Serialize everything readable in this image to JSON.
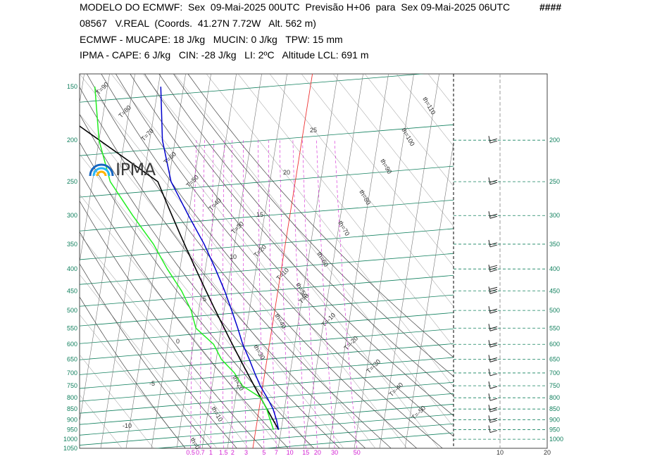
{
  "header": {
    "line1": "MODELO DO ECMWF:  Sex  09-Mai-2025 00UTC  Previsão H+06  para  Sex 09-Mai-2025 06UTC",
    "marker": "####",
    "line2": "08567   V.REAL  (Coords.  41.27N 7.72W   Alt. 562 m)",
    "line3": "ECMWF - MUCAPE: 18 J/kg   MUCIN: 0 J/kg   TPW: 15 mm",
    "line4": "IPMA - CAPE: 6 J/kg   CIN: -28 J/kg   LI: 2ºC   Altitude LCL: 691 m"
  },
  "logo": {
    "text": "IPMA",
    "colors": [
      "#1565c0",
      "#29b6f6",
      "#ffb300"
    ]
  },
  "chart_data": {
    "type": "skew-t log-p",
    "pressure_axis_left": [
      "150",
      "200",
      "250",
      "300",
      "350",
      "400",
      "450",
      "500",
      "550",
      "600",
      "650",
      "700",
      "750",
      "800",
      "850",
      "900",
      "950",
      "1000",
      "1050"
    ],
    "pressure_axis_right": [
      "200",
      "250",
      "300",
      "350",
      "400",
      "450",
      "500",
      "550",
      "600",
      "650",
      "700",
      "750",
      "800",
      "850",
      "900",
      "950",
      "1000"
    ],
    "pressure_levels_left": [
      150,
      200,
      250,
      300,
      350,
      400,
      450,
      500,
      550,
      600,
      650,
      700,
      750,
      800,
      850,
      900,
      950,
      1000,
      1050
    ],
    "pressure_levels_right": [
      200,
      250,
      300,
      350,
      400,
      450,
      500,
      550,
      600,
      650,
      700,
      750,
      800,
      850,
      900,
      950,
      1000
    ],
    "mixing_ratio_ticks": [
      "0.5",
      "0.7",
      "1",
      "1.5",
      "2",
      "3",
      "5",
      "7",
      "10",
      "15",
      "20",
      "30",
      "50"
    ],
    "wind_axis_ticks": [
      "10",
      "20"
    ],
    "isotherm_labels": [
      "T=90",
      "T=80",
      "T=70",
      "T=60",
      "T=50",
      "T=40",
      "T=30",
      "T=20",
      "T=10",
      "T=0",
      "T=-10",
      "T=-20",
      "T=-30",
      "T=-40",
      "T=-50"
    ],
    "theta_labels": [
      "th=110",
      "th=100",
      "th=90",
      "th=80",
      "th=70",
      "th=60",
      "th=50",
      "th=40",
      "th=30",
      "th=20",
      "th=10",
      "th=0",
      "th=-10",
      "th=-20"
    ],
    "moist_adiabat_labels": [
      "25",
      "20",
      "15",
      "10",
      "5",
      "0",
      "-5",
      "-10"
    ],
    "temperature_profile": [
      {
        "p": 950,
        "t": 9.0
      },
      {
        "p": 900,
        "t": 7.5
      },
      {
        "p": 850,
        "t": 5.5
      },
      {
        "p": 800,
        "t": 2.5
      },
      {
        "p": 750,
        "t": -1.0
      },
      {
        "p": 700,
        "t": -4.0
      },
      {
        "p": 650,
        "t": -7.0
      },
      {
        "p": 600,
        "t": -10.5
      },
      {
        "p": 550,
        "t": -13.5
      },
      {
        "p": 500,
        "t": -17.0
      },
      {
        "p": 450,
        "t": -21.0
      },
      {
        "p": 400,
        "t": -26.0
      },
      {
        "p": 350,
        "t": -32.0
      },
      {
        "p": 300,
        "t": -40.0
      },
      {
        "p": 250,
        "t": -49.0
      },
      {
        "p": 200,
        "t": -55.0
      },
      {
        "p": 150,
        "t": -59.0
      }
    ],
    "dewpoint_profile": [
      {
        "p": 950,
        "t": 7.0
      },
      {
        "p": 900,
        "t": 5.0
      },
      {
        "p": 850,
        "t": 3.0
      },
      {
        "p": 800,
        "t": 0.0
      },
      {
        "p": 750,
        "t": -8.0
      },
      {
        "p": 700,
        "t": -12.0
      },
      {
        "p": 650,
        "t": -18.0
      },
      {
        "p": 600,
        "t": -22.0
      },
      {
        "p": 550,
        "t": -30.0
      },
      {
        "p": 500,
        "t": -33.0
      },
      {
        "p": 450,
        "t": -38.0
      },
      {
        "p": 400,
        "t": -45.0
      },
      {
        "p": 350,
        "t": -52.0
      },
      {
        "p": 300,
        "t": -62.0
      },
      {
        "p": 250,
        "t": -73.0
      },
      {
        "p": 200,
        "t": -80.0
      },
      {
        "p": 150,
        "t": -85.0
      }
    ],
    "wind_barbs": [
      {
        "p": 950,
        "kt": 10
      },
      {
        "p": 900,
        "kt": 15
      },
      {
        "p": 850,
        "kt": 15
      },
      {
        "p": 800,
        "kt": 10
      },
      {
        "p": 750,
        "kt": 10
      },
      {
        "p": 700,
        "kt": 10
      },
      {
        "p": 650,
        "kt": 15
      },
      {
        "p": 600,
        "kt": 15
      },
      {
        "p": 550,
        "kt": 15
      },
      {
        "p": 500,
        "kt": 20
      },
      {
        "p": 450,
        "kt": 25
      },
      {
        "p": 400,
        "kt": 25
      },
      {
        "p": 350,
        "kt": 20
      },
      {
        "p": 300,
        "kt": 15
      },
      {
        "p": 250,
        "kt": 15
      },
      {
        "p": 200,
        "kt": 20
      }
    ],
    "colors": {
      "temperature": "#0000cc",
      "dewpoint": "#22ee22",
      "parcel": "#000000",
      "isobar": "#11805e",
      "isotherm": "#222222",
      "mixing_ratio": "#d21fd2",
      "zero_isotherm": "#ee3333"
    }
  }
}
